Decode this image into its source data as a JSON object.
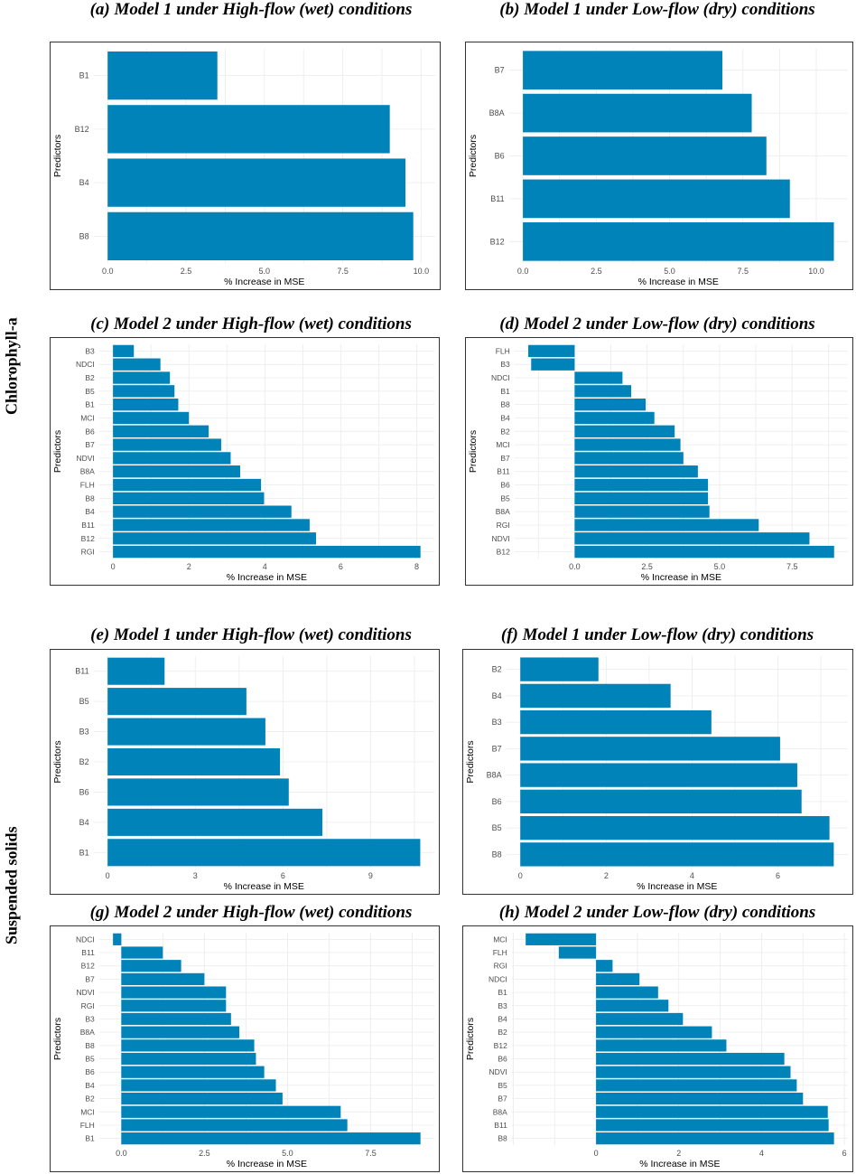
{
  "row_labels": {
    "top": "Chlorophyll-a",
    "bottom": "Suspended solids"
  },
  "colors": {
    "bar": "#0083b8",
    "grid": "#ebebeb",
    "frame": "#333333",
    "text": "#4d4d4d",
    "axis_title": "#000000"
  },
  "chart_data": [
    {
      "id": "a",
      "type": "bar",
      "orientation": "horizontal",
      "title": "(a)  Model 1 under High-flow (wet) conditions",
      "xlabel": "% Increase in MSE",
      "ylabel": "Predictors",
      "categories": [
        "B1",
        "B12",
        "B4",
        "B8"
      ],
      "values": [
        3.5,
        9.0,
        9.5,
        9.75
      ],
      "xlim": [
        0,
        10
      ],
      "xticks": [
        0,
        2.5,
        5,
        7.5,
        10
      ],
      "tick_labels": [
        "0.0",
        "2.5",
        "5.0",
        "7.5",
        "10.0"
      ]
    },
    {
      "id": "b",
      "type": "bar",
      "orientation": "horizontal",
      "title": "(b)  Model 1 under Low-flow (dry) conditions",
      "xlabel": "% Increase in MSE",
      "ylabel": "Predictors",
      "categories": [
        "B7",
        "B8A",
        "B6",
        "B11",
        "B12"
      ],
      "values": [
        6.8,
        7.8,
        8.3,
        9.1,
        10.6
      ],
      "xlim": [
        0,
        10.6
      ],
      "xticks": [
        0,
        2.5,
        5,
        7.5,
        10
      ],
      "tick_labels": [
        "0.0",
        "2.5",
        "5.0",
        "7.5",
        "10.0"
      ]
    },
    {
      "id": "c",
      "type": "bar",
      "orientation": "horizontal",
      "title": "(c)  Model 2 under High-flow (wet) conditions",
      "xlabel": "% Increase in MSE",
      "ylabel": "Predictors",
      "categories": [
        "B3",
        "NDCI",
        "B2",
        "B5",
        "B1",
        "MCI",
        "B6",
        "B7",
        "NDVI",
        "B8A",
        "FLH",
        "B8",
        "B4",
        "B11",
        "B12",
        "RGI"
      ],
      "values": [
        0.55,
        1.25,
        1.5,
        1.62,
        1.72,
        2.0,
        2.52,
        2.85,
        3.1,
        3.35,
        3.9,
        3.98,
        4.7,
        5.18,
        5.35,
        8.1
      ],
      "xlim": [
        0,
        8.1
      ],
      "xticks": [
        0,
        2,
        4,
        6,
        8
      ],
      "tick_labels": [
        "0",
        "2",
        "4",
        "6",
        "8"
      ]
    },
    {
      "id": "d",
      "type": "bar",
      "orientation": "horizontal",
      "title": "(d)  Model 2 under Low-flow (dry) conditions",
      "xlabel": "% Increase in MSE",
      "ylabel": "Predictors",
      "categories": [
        "FLH",
        "B3",
        "NDCI",
        "B1",
        "B8",
        "B4",
        "B2",
        "MCI",
        "B7",
        "B11",
        "B6",
        "B5",
        "B8A",
        "RGI",
        "NDVI",
        "B12"
      ],
      "values": [
        -1.6,
        -1.5,
        1.65,
        1.95,
        2.45,
        2.75,
        3.45,
        3.65,
        3.75,
        4.25,
        4.6,
        4.6,
        4.65,
        6.35,
        8.1,
        8.95
      ],
      "xlim": [
        -1.6,
        8.95
      ],
      "xticks": [
        0,
        2.5,
        5,
        7.5
      ],
      "tick_labels": [
        "0.0",
        "2.5",
        "5.0",
        "7.5"
      ]
    },
    {
      "id": "e",
      "type": "bar",
      "orientation": "horizontal",
      "title": "(e)  Model 1 under High-flow (wet) conditions",
      "xlabel": "% Increase in MSE",
      "ylabel": "Predictors",
      "categories": [
        "B11",
        "B5",
        "B3",
        "B2",
        "B6",
        "B4",
        "B1"
      ],
      "values": [
        1.95,
        4.75,
        5.4,
        5.9,
        6.2,
        7.35,
        10.7
      ],
      "xlim": [
        0,
        10.7
      ],
      "xticks": [
        0,
        3,
        6,
        9
      ],
      "tick_labels": [
        "0",
        "3",
        "6",
        "9"
      ]
    },
    {
      "id": "f",
      "type": "bar",
      "orientation": "horizontal",
      "title": "(f)  Model 1 under Low-flow (dry) conditions",
      "xlabel": "% Increase in MSE",
      "ylabel": "Predictors",
      "categories": [
        "B2",
        "B4",
        "B3",
        "B7",
        "B8A",
        "B6",
        "B5",
        "B8"
      ],
      "values": [
        1.82,
        3.5,
        4.45,
        6.05,
        6.45,
        6.55,
        7.2,
        7.3
      ],
      "xlim": [
        0,
        7.3
      ],
      "xticks": [
        0,
        2,
        4,
        6
      ],
      "tick_labels": [
        "0",
        "2",
        "4",
        "6"
      ]
    },
    {
      "id": "g",
      "type": "bar",
      "orientation": "horizontal",
      "title": "(g)  Model 2 under High-flow (wet) conditions",
      "xlabel": "% Increase in MSE",
      "ylabel": "Predictors",
      "categories": [
        "NDCI",
        "B11",
        "B12",
        "B7",
        "NDVI",
        "RGI",
        "B3",
        "B8A",
        "B8",
        "B5",
        "B6",
        "B4",
        "B2",
        "MCI",
        "FLH",
        "B1"
      ],
      "values": [
        -0.25,
        1.25,
        1.8,
        2.5,
        3.15,
        3.15,
        3.3,
        3.55,
        4.0,
        4.05,
        4.3,
        4.65,
        4.85,
        6.6,
        6.8,
        9.0
      ],
      "xlim": [
        -0.25,
        9.0
      ],
      "xticks": [
        0,
        2.5,
        5,
        7.5
      ],
      "tick_labels": [
        "0.0",
        "2.5",
        "5.0",
        "7.5"
      ]
    },
    {
      "id": "h",
      "type": "bar",
      "orientation": "horizontal",
      "title": "(h)  Model 2 under Low-flow (dry) conditions",
      "xlabel": "% Increase in MSE",
      "ylabel": "Predictors",
      "categories": [
        "MCI",
        "FLH",
        "RGI",
        "NDCI",
        "B1",
        "B3",
        "B4",
        "B2",
        "B12",
        "B6",
        "NDVI",
        "B5",
        "B7",
        "B8A",
        "B11",
        "B8"
      ],
      "values": [
        -1.7,
        -0.9,
        0.4,
        1.05,
        1.5,
        1.75,
        2.1,
        2.8,
        3.15,
        4.55,
        4.7,
        4.85,
        5.0,
        5.6,
        5.62,
        5.75
      ],
      "xlim": [
        -1.7,
        5.75
      ],
      "xticks": [
        0,
        2,
        4,
        6
      ],
      "tick_labels": [
        "0",
        "2",
        "4",
        "6"
      ]
    }
  ]
}
